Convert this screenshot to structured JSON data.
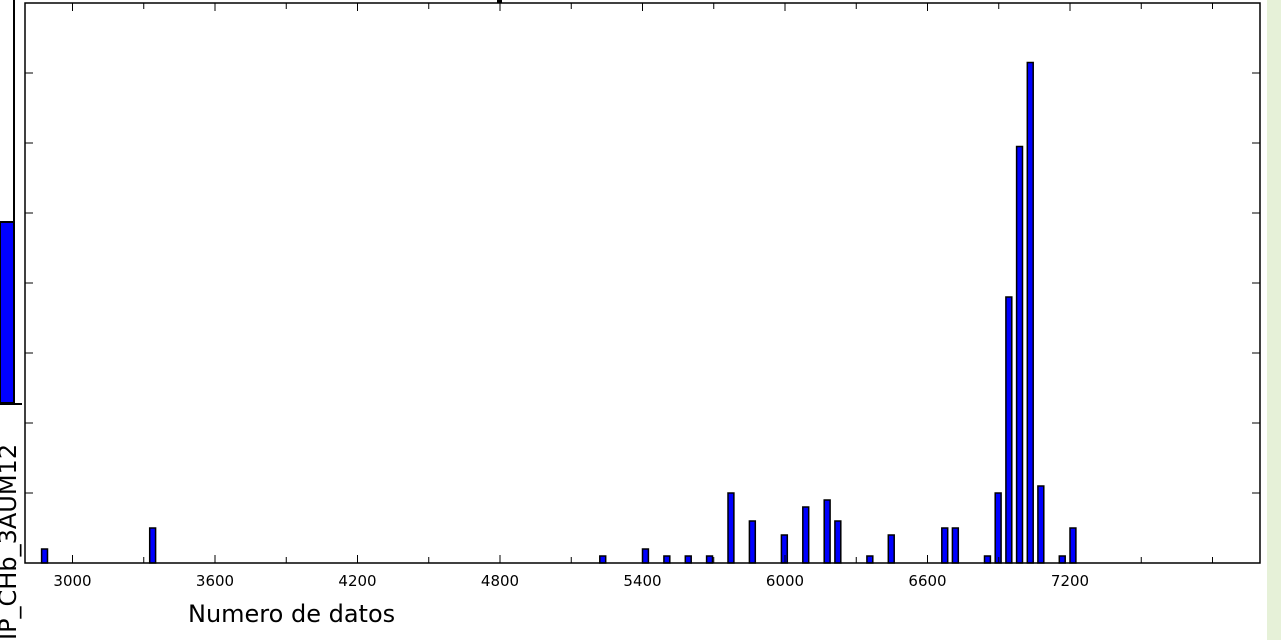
{
  "chart_data": {
    "type": "bar",
    "title": "",
    "xlabel": "Numero de datos",
    "ylabel": "",
    "partial_ylabel_text": "IP_CHb_3AUM12",
    "xlim": [
      2800,
      8000
    ],
    "ylim": [
      0,
      40
    ],
    "x_ticks": [
      3000,
      3600,
      4200,
      4800,
      5400,
      6000,
      6600,
      7200
    ],
    "x_tick_labels": [
      "3000",
      "3600",
      "4200",
      "4800",
      "5400",
      "6000",
      "6600",
      "7200"
    ],
    "y_ticks_right": [
      0,
      5,
      10,
      15,
      20,
      25,
      30,
      35,
      40
    ],
    "bin_width": 45,
    "bars": [
      {
        "x": 2870,
        "y": 1
      },
      {
        "x": 3325,
        "y": 2.5
      },
      {
        "x": 5220,
        "y": 0.5
      },
      {
        "x": 5400,
        "y": 1
      },
      {
        "x": 5490,
        "y": 0.5
      },
      {
        "x": 5580,
        "y": 0.5
      },
      {
        "x": 5670,
        "y": 0.5
      },
      {
        "x": 5760,
        "y": 5
      },
      {
        "x": 5850,
        "y": 3
      },
      {
        "x": 5985,
        "y": 2
      },
      {
        "x": 6075,
        "y": 4
      },
      {
        "x": 6165,
        "y": 4.5
      },
      {
        "x": 6210,
        "y": 3
      },
      {
        "x": 6345,
        "y": 0.5
      },
      {
        "x": 6435,
        "y": 2
      },
      {
        "x": 6660,
        "y": 2.5
      },
      {
        "x": 6705,
        "y": 2.5
      },
      {
        "x": 6840,
        "y": 0.5
      },
      {
        "x": 6885,
        "y": 5
      },
      {
        "x": 6930,
        "y": 19
      },
      {
        "x": 6975,
        "y": 29.75
      },
      {
        "x": 7020,
        "y": 35.75
      },
      {
        "x": 7065,
        "y": 5.5
      },
      {
        "x": 7155,
        "y": 0.5
      },
      {
        "x": 7200,
        "y": 2.5
      }
    ],
    "bar_color": "#0000ff",
    "edge_color": "#000000",
    "grid": false,
    "legend": "none"
  },
  "colors": {
    "right_strip": "#e6f1d8",
    "background": "#ffffff"
  }
}
